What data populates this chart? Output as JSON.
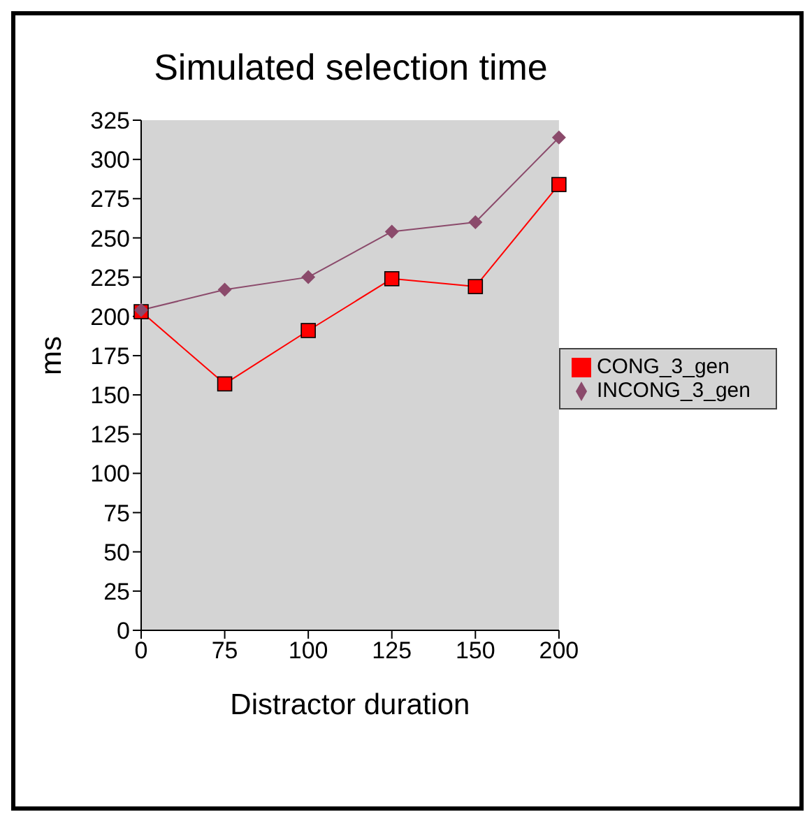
{
  "chart_data": {
    "type": "line",
    "title": "Simulated selection time",
    "xlabel": "Distractor duration",
    "ylabel": "ms",
    "categories": [
      "0",
      "75",
      "100",
      "125",
      "150",
      "200"
    ],
    "series": [
      {
        "name": "CONG_3_gen",
        "color": "#ff0000",
        "marker": "square",
        "values": [
          203,
          157,
          191,
          224,
          219,
          284
        ]
      },
      {
        "name": "INCONG_3_gen",
        "color": "#8b4a6b",
        "marker": "diamond",
        "values": [
          204,
          217,
          225,
          254,
          260,
          314
        ]
      }
    ],
    "ylim": [
      0,
      325
    ],
    "yticks": [
      0,
      25,
      50,
      75,
      100,
      125,
      150,
      175,
      200,
      225,
      250,
      275,
      300,
      325
    ],
    "grid": false,
    "legend": "right"
  }
}
